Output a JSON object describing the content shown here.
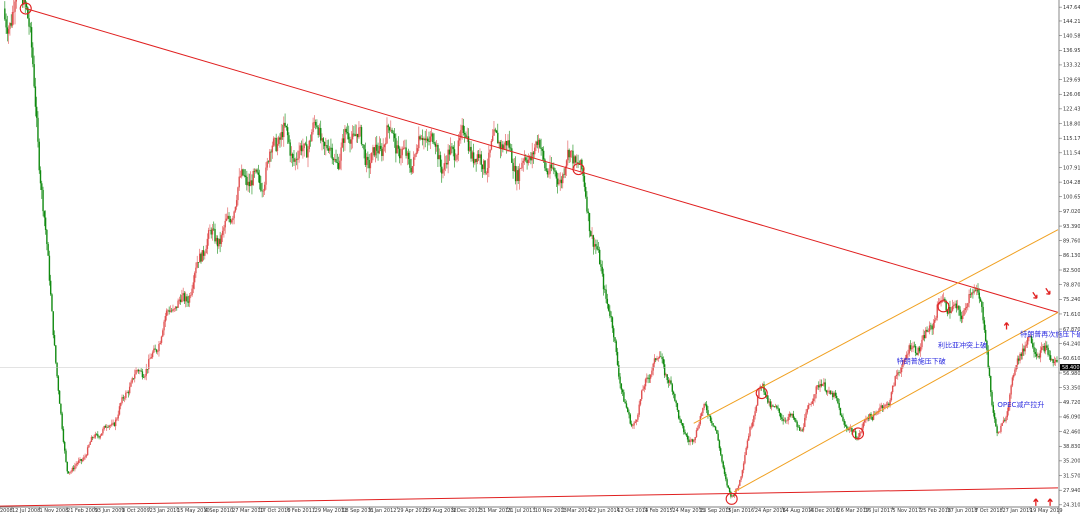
{
  "chart_data": {
    "type": "candlestick",
    "title": "",
    "xlabel": "",
    "ylabel": "",
    "ylim": [
      24.02,
      149.41
    ],
    "grid": false,
    "price_axis": {
      "ticks": [
        147.64,
        144.21,
        140.58,
        136.95,
        133.32,
        129.69,
        126.06,
        122.43,
        118.8,
        115.17,
        111.54,
        107.91,
        104.28,
        100.65,
        97.02,
        93.39,
        89.76,
        86.13,
        82.5,
        78.87,
        75.24,
        71.61,
        67.87,
        64.24,
        60.61,
        56.98,
        53.35,
        49.72,
        46.09,
        42.46,
        38.83,
        35.2,
        31.57,
        27.94,
        24.31
      ]
    },
    "current_price": 58.4,
    "time_axis": {
      "labels": [
        "2008",
        "12 Jul 2008",
        "1 Nov 2008",
        "21 Feb 2009",
        "13 Jun 2009",
        "3 Oct 2009",
        "23 Jan 2010",
        "15 May 2010",
        "4 Sep 2010",
        "27 Mar 2010",
        "17 Oct 2010",
        "6 Feb 2011",
        "29 May 2011",
        "18 Sep 2011",
        "6 Jan 2012",
        "29 Apr 2012",
        "19 Aug 2012",
        "9 Dec 2012",
        "31 Mar 2013",
        "21 Jul 2013",
        "10 Nov 2013",
        "1 Mar 2014",
        "22 Jun 2014",
        "12 Oct 2014",
        "1 Feb 2015",
        "24 May 2015",
        "13 Sep 2015",
        "3 Jan 2016",
        "24 Apr 2016",
        "14 Aug 2016",
        "4 Dec 2016",
        "26 Mar 2017",
        "16 Jul 2017",
        "5 Nov 2017",
        "25 Feb 2018",
        "17 Jun 2018",
        "7 Oct 2018",
        "27 Jan 2019",
        "19 May 2019"
      ],
      "start": "2008-04-01",
      "end": "2019-08-15"
    },
    "key_points": [
      {
        "date": "2008-07-11",
        "price": 147.3
      },
      {
        "date": "2008-12-20",
        "price": 33.0
      },
      {
        "date": "2011-04-29",
        "price": 114.0
      },
      {
        "date": "2013-07-20",
        "price": 112.0
      },
      {
        "date": "2014-06-20",
        "price": 107.5
      },
      {
        "date": "2015-01-15",
        "price": 45.0
      },
      {
        "date": "2015-05-10",
        "price": 62.0
      },
      {
        "date": "2015-08-25",
        "price": 38.5
      },
      {
        "date": "2015-11-01",
        "price": 50.0
      },
      {
        "date": "2016-02-11",
        "price": 26.0
      },
      {
        "date": "2016-06-08",
        "price": 52.0
      },
      {
        "date": "2016-11-10",
        "price": 42.5
      },
      {
        "date": "2017-01-05",
        "price": 55.0
      },
      {
        "date": "2017-06-21",
        "price": 42.0
      },
      {
        "date": "2018-05-22",
        "price": 72.5
      },
      {
        "date": "2018-10-03",
        "price": 76.0
      },
      {
        "date": "2018-12-24",
        "price": 42.5
      },
      {
        "date": "2019-04-23",
        "price": 66.5
      },
      {
        "date": "2019-08-07",
        "price": 58.4
      }
    ],
    "trendlines": [
      {
        "color": "#e02020",
        "points": [
          {
            "date": "2008-07-11",
            "price": 147.3
          },
          {
            "date": "2019-08-15",
            "price": 72.0
          }
        ]
      },
      {
        "color": "#e02020",
        "points": [
          {
            "date": "2008-04-01",
            "price": 24.0
          },
          {
            "date": "2019-08-15",
            "price": 28.5
          }
        ]
      },
      {
        "color": "#f0a020",
        "points": [
          {
            "date": "2015-09-15",
            "price": 44.5
          },
          {
            "date": "2019-08-15",
            "price": 92.5
          }
        ]
      },
      {
        "color": "#f0a020",
        "points": [
          {
            "date": "2016-02-20",
            "price": 27.5
          },
          {
            "date": "2019-08-15",
            "price": 72.0
          }
        ]
      }
    ],
    "circles": [
      {
        "date": "2008-07-11",
        "price": 147.3
      },
      {
        "date": "2014-06-20",
        "price": 107.5
      },
      {
        "date": "2016-06-08",
        "price": 52.0
      },
      {
        "date": "2016-02-11",
        "price": 25.8
      },
      {
        "date": "2017-06-21",
        "price": 42.0
      },
      {
        "date": "2018-05-22",
        "price": 73.5
      }
    ],
    "annotations": [
      {
        "text": "特朗普再次施压下破",
        "date": "2019-03-20",
        "price": 66.0
      },
      {
        "text": "利比亚冲突上破",
        "date": "2018-05-01",
        "price": 63.3
      },
      {
        "text": "特朗普施压下破",
        "date": "2017-11-20",
        "price": 59.3
      },
      {
        "text": "OPEC减产拉升",
        "date": "2018-12-20",
        "price": 48.5
      }
    ],
    "arrows": [
      {
        "direction": "down",
        "date": "2019-05-20",
        "price": 75.5
      },
      {
        "direction": "down",
        "date": "2019-07-10",
        "price": 76.5
      },
      {
        "direction": "up",
        "date": "2019-01-25",
        "price": 69.5
      },
      {
        "direction": "up",
        "date": "2019-05-20",
        "price": 25.8
      },
      {
        "direction": "up",
        "date": "2019-07-15",
        "price": 25.8
      }
    ],
    "colors": {
      "up": "#e05050",
      "down": "#108a10",
      "resistance": "#e02020",
      "channel": "#f0a020",
      "annotation": "#2a2ae0"
    }
  }
}
